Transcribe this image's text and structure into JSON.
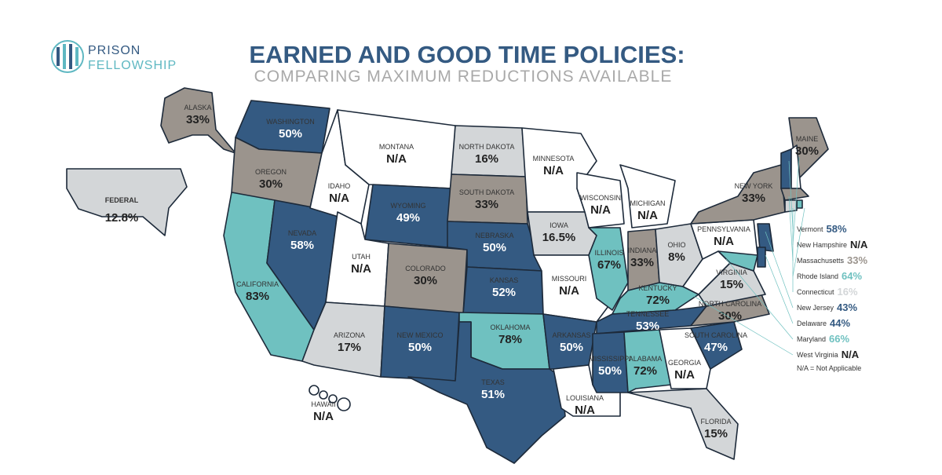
{
  "header": {
    "logo_line1": "PRISON",
    "logo_line2": "FELLOWSHIP",
    "title": "EARNED AND GOOD TIME POLICIES:",
    "subtitle": "COMPARING MAXIMUM REDUCTIONS AVAILABLE"
  },
  "states": [
    {
      "name": "ALASKA",
      "value": "33%",
      "color": "#9b948d"
    },
    {
      "name": "FEDERAL",
      "value": "12.8%",
      "color": "#d3d6d8"
    },
    {
      "name": "WASHINGTON",
      "value": "50%",
      "color": "#345a82"
    },
    {
      "name": "OREGON",
      "value": "30%",
      "color": "#9b948d"
    },
    {
      "name": "CALIFORNIA",
      "value": "83%",
      "color": "#6fc1c0"
    },
    {
      "name": "NEVADA",
      "value": "58%",
      "color": "#345a82"
    },
    {
      "name": "IDAHO",
      "value": "N/A",
      "color": "#ffffff"
    },
    {
      "name": "MONTANA",
      "value": "N/A",
      "color": "#ffffff"
    },
    {
      "name": "WYOMING",
      "value": "49%",
      "color": "#345a82"
    },
    {
      "name": "UTAH",
      "value": "N/A",
      "color": "#ffffff"
    },
    {
      "name": "ARIZONA",
      "value": "17%",
      "color": "#d3d6d8"
    },
    {
      "name": "COLORADO",
      "value": "30%",
      "color": "#9b948d"
    },
    {
      "name": "NEW MEXICO",
      "value": "50%",
      "color": "#345a82"
    },
    {
      "name": "NORTH DAKOTA",
      "value": "16%",
      "color": "#d3d6d8"
    },
    {
      "name": "SOUTH DAKOTA",
      "value": "33%",
      "color": "#9b948d"
    },
    {
      "name": "NEBRASKA",
      "value": "50%",
      "color": "#345a82"
    },
    {
      "name": "KANSAS",
      "value": "52%",
      "color": "#345a82"
    },
    {
      "name": "OKLAHOMA",
      "value": "78%",
      "color": "#6fc1c0"
    },
    {
      "name": "TEXAS",
      "value": "51%",
      "color": "#345a82"
    },
    {
      "name": "MINNESOTA",
      "value": "N/A",
      "color": "#ffffff"
    },
    {
      "name": "IOWA",
      "value": "16.5%",
      "color": "#d3d6d8"
    },
    {
      "name": "MISSOURI",
      "value": "N/A",
      "color": "#ffffff"
    },
    {
      "name": "ARKANSAS",
      "value": "50%",
      "color": "#345a82"
    },
    {
      "name": "LOUISIANA",
      "value": "N/A",
      "color": "#ffffff"
    },
    {
      "name": "WISCONSIN",
      "value": "N/A",
      "color": "#ffffff"
    },
    {
      "name": "ILLINOIS",
      "value": "67%",
      "color": "#6fc1c0"
    },
    {
      "name": "MICHIGAN",
      "value": "N/A",
      "color": "#ffffff"
    },
    {
      "name": "INDIANA",
      "value": "33%",
      "color": "#9b948d"
    },
    {
      "name": "OHIO",
      "value": "8%",
      "color": "#d3d6d8"
    },
    {
      "name": "KENTUCKY",
      "value": "72%",
      "color": "#6fc1c0"
    },
    {
      "name": "TENNESSEE",
      "value": "53%",
      "color": "#345a82"
    },
    {
      "name": "MISSISSIPPI",
      "value": "50%",
      "color": "#345a82"
    },
    {
      "name": "ALABAMA",
      "value": "72%",
      "color": "#6fc1c0"
    },
    {
      "name": "GEORGIA",
      "value": "N/A",
      "color": "#ffffff"
    },
    {
      "name": "FLORIDA",
      "value": "15%",
      "color": "#d3d6d8"
    },
    {
      "name": "SOUTH CAROLINA",
      "value": "47%",
      "color": "#345a82"
    },
    {
      "name": "NORTH CAROLINA",
      "value": "30%",
      "color": "#9b948d"
    },
    {
      "name": "VIRGINIA",
      "value": "15%",
      "color": "#d3d6d8"
    },
    {
      "name": "PENNSYLVANIA",
      "value": "N/A",
      "color": "#ffffff"
    },
    {
      "name": "NEW YORK",
      "value": "33%",
      "color": "#9b948d"
    },
    {
      "name": "MAINE",
      "value": "30%",
      "color": "#9b948d"
    },
    {
      "name": "HAWAII",
      "value": "N/A",
      "color": "#ffffff"
    },
    {
      "name": "Vermont",
      "value": "58%",
      "color": "#345a82"
    },
    {
      "name": "New Hampshire",
      "value": "N/A",
      "color": "#ffffff"
    },
    {
      "name": "Massachusetts",
      "value": "33%",
      "color": "#9b948d"
    },
    {
      "name": "Rhode Island",
      "value": "64%",
      "color": "#6fc1c0"
    },
    {
      "name": "Connecticut",
      "value": "16%",
      "color": "#d3d6d8"
    },
    {
      "name": "New Jersey",
      "value": "43%",
      "color": "#345a82"
    },
    {
      "name": "Delaware",
      "value": "44%",
      "color": "#345a82"
    },
    {
      "name": "Maryland",
      "value": "66%",
      "color": "#6fc1c0"
    },
    {
      "name": "West Virginia",
      "value": "N/A",
      "color": "#ffffff"
    }
  ],
  "footnote": "N/A = Not Applicable"
}
